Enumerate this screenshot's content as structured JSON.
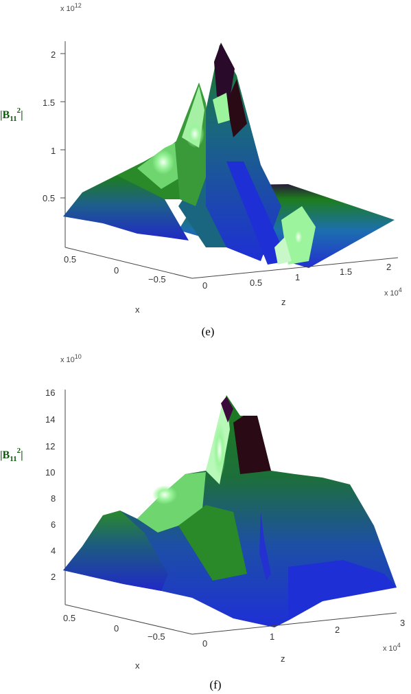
{
  "chart_data": [
    {
      "type": "surface",
      "panel_label": "(e)",
      "zlabel_main": "|B",
      "zlabel_sub": "11",
      "zlabel_sup": "2",
      "xlabel": "x",
      "ylabel": "z",
      "z_multiplier": "x 10",
      "z_multiplier_exp": "12",
      "y_multiplier": "x 10",
      "y_multiplier_exp": "4",
      "z_ticks": [
        "0.5",
        "1",
        "1.5",
        "2"
      ],
      "z_tick_values": [
        0.5,
        1,
        1.5,
        2
      ],
      "x_ticks": [
        "0.5",
        "0",
        "−0.5"
      ],
      "y_ticks": [
        "0",
        "0.5",
        "1",
        "1.5",
        "2"
      ],
      "y_tick_values": [
        0,
        0.5,
        1,
        1.5,
        2
      ],
      "zlim": [
        0,
        2.2
      ],
      "peak_value": 2.2,
      "colormap": [
        "#08004a",
        "#1e2fd6",
        "#1d7d1d",
        "#90f590",
        "#f5fff5",
        "#2a0a14"
      ]
    },
    {
      "type": "surface",
      "panel_label": "(f)",
      "zlabel_main": "|B",
      "zlabel_sub": "11",
      "zlabel_sup": "2",
      "xlabel": "x",
      "ylabel": "z",
      "z_multiplier": "x 10",
      "z_multiplier_exp": "10",
      "y_multiplier": "x 10",
      "y_multiplier_exp": "4",
      "z_ticks": [
        "2",
        "4",
        "6",
        "8",
        "10",
        "12",
        "14",
        "16"
      ],
      "z_tick_values": [
        2,
        4,
        6,
        8,
        10,
        12,
        14,
        16
      ],
      "x_ticks": [
        "0.5",
        "0",
        "−0.5"
      ],
      "y_ticks": [
        "0",
        "1",
        "2",
        "3"
      ],
      "y_tick_values": [
        0,
        1,
        2,
        3
      ],
      "zlim": [
        0,
        16.5
      ],
      "peak_value": 15.6,
      "colormap": [
        "#08004a",
        "#1e2fd6",
        "#1d7d1d",
        "#90f590",
        "#f5fff5",
        "#2a0a14"
      ]
    }
  ]
}
